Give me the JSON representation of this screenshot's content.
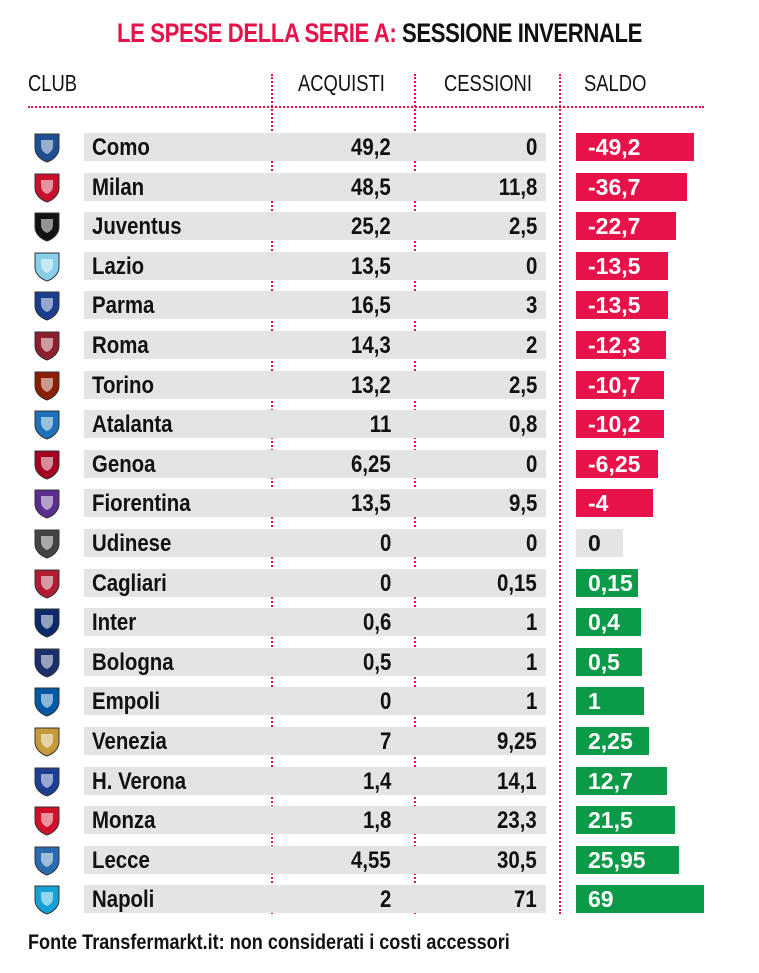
{
  "title": {
    "part1": "LE SPESE DELLA SERIE A:",
    "part2": "SESSIONE INVERNALE"
  },
  "headers": {
    "club": "CLUB",
    "acquisti": "ACQUISTI",
    "cessioni": "CESSIONI",
    "saldo": "SALDO"
  },
  "footer": "Fonte Transfermarkt.it: non considerati i costi accessori",
  "colors": {
    "accent": "#e8124a",
    "negative": "#e8124a",
    "positive": "#0b9a48",
    "zero": "#e4e4e4"
  },
  "chart_data": {
    "type": "table",
    "title": "LE SPESE DELLA SERIE A: SESSIONE INVERNALE",
    "columns": [
      "CLUB",
      "ACQUISTI",
      "CESSIONI",
      "SALDO"
    ],
    "rows": [
      {
        "club": "Como",
        "acquisti": "49,2",
        "cessioni": "0",
        "saldo": "-49,2",
        "saldo_value": -49.2,
        "logo_color": "#1d4f91"
      },
      {
        "club": "Milan",
        "acquisti": "48,5",
        "cessioni": "11,8",
        "saldo": "-36,7",
        "saldo_value": -36.7,
        "logo_color": "#c8102e"
      },
      {
        "club": "Juventus",
        "acquisti": "25,2",
        "cessioni": "2,5",
        "saldo": "-22,7",
        "saldo_value": -22.7,
        "logo_color": "#111111"
      },
      {
        "club": "Lazio",
        "acquisti": "13,5",
        "cessioni": "0",
        "saldo": "-13,5",
        "saldo_value": -13.5,
        "logo_color": "#87ceeb"
      },
      {
        "club": "Parma",
        "acquisti": "16,5",
        "cessioni": "3",
        "saldo": "-13,5",
        "saldo_value": -13.5,
        "logo_color": "#1a3d8f"
      },
      {
        "club": "Roma",
        "acquisti": "14,3",
        "cessioni": "2",
        "saldo": "-12,3",
        "saldo_value": -12.3,
        "logo_color": "#8e1f2f"
      },
      {
        "club": "Torino",
        "acquisti": "13,2",
        "cessioni": "2,5",
        "saldo": "-10,7",
        "saldo_value": -10.7,
        "logo_color": "#8a1e03"
      },
      {
        "club": "Atalanta",
        "acquisti": "11",
        "cessioni": "0,8",
        "saldo": "-10,2",
        "saldo_value": -10.2,
        "logo_color": "#1e71b8"
      },
      {
        "club": "Genoa",
        "acquisti": "6,25",
        "cessioni": "0",
        "saldo": "-6,25",
        "saldo_value": -6.25,
        "logo_color": "#a50021"
      },
      {
        "club": "Fiorentina",
        "acquisti": "13,5",
        "cessioni": "9,5",
        "saldo": "-4",
        "saldo_value": -4,
        "logo_color": "#5b2d8e"
      },
      {
        "club": "Udinese",
        "acquisti": "0",
        "cessioni": "0",
        "saldo": "0",
        "saldo_value": 0,
        "logo_color": "#444444"
      },
      {
        "club": "Cagliari",
        "acquisti": "0",
        "cessioni": "0,15",
        "saldo": "0,15",
        "saldo_value": 0.15,
        "logo_color": "#b01d33"
      },
      {
        "club": "Inter",
        "acquisti": "0,6",
        "cessioni": "1",
        "saldo": "0,4",
        "saldo_value": 0.4,
        "logo_color": "#0a2a6b"
      },
      {
        "club": "Bologna",
        "acquisti": "0,5",
        "cessioni": "1",
        "saldo": "0,5",
        "saldo_value": 0.5,
        "logo_color": "#1a2f6b"
      },
      {
        "club": "Empoli",
        "acquisti": "0",
        "cessioni": "1",
        "saldo": "1",
        "saldo_value": 1,
        "logo_color": "#0057a8"
      },
      {
        "club": "Venezia",
        "acquisti": "7",
        "cessioni": "9,25",
        "saldo": "2,25",
        "saldo_value": 2.25,
        "logo_color": "#c49a3a"
      },
      {
        "club": "H. Verona",
        "acquisti": "1,4",
        "cessioni": "14,1",
        "saldo": "12,7",
        "saldo_value": 12.7,
        "logo_color": "#1c3f95"
      },
      {
        "club": "Monza",
        "acquisti": "1,8",
        "cessioni": "23,3",
        "saldo": "21,5",
        "saldo_value": 21.5,
        "logo_color": "#d0102b"
      },
      {
        "club": "Lecce",
        "acquisti": "4,55",
        "cessioni": "30,5",
        "saldo": "25,95",
        "saldo_value": 25.95,
        "logo_color": "#2a6bb0"
      },
      {
        "club": "Napoli",
        "acquisti": "2",
        "cessioni": "71",
        "saldo": "69",
        "saldo_value": 69,
        "logo_color": "#12a0d7"
      }
    ]
  }
}
